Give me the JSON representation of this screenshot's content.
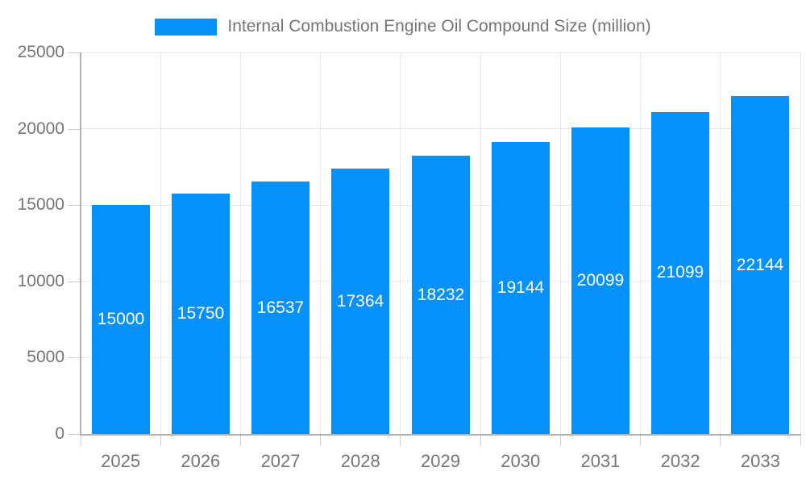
{
  "chart_data": {
    "type": "bar",
    "title": "Internal Combustion Engine Oil Compound Size (million)",
    "categories": [
      "2025",
      "2026",
      "2027",
      "2028",
      "2029",
      "2030",
      "2031",
      "2032",
      "2033"
    ],
    "series": [
      {
        "name": "Internal Combustion Engine Oil Compound Size (million)",
        "values": [
          15000,
          15750,
          16537,
          17364,
          18232,
          19144,
          20099,
          21099,
          22144
        ]
      }
    ],
    "xlabel": "",
    "ylabel": "",
    "ylim": [
      0,
      25000
    ],
    "yticks": [
      0,
      5000,
      10000,
      15000,
      20000,
      25000
    ],
    "grid": true,
    "legend_position": "top-center",
    "value_labels_position": "inside-middle-center",
    "style": {
      "bar_color": "#0591fb",
      "grid_color": "#e6e6e6",
      "axis_color": "#b3b3b3",
      "tick_color": "#cccccc",
      "tick_label_color": "#757575",
      "value_label_color": "#ffffff",
      "background": "#ffffff"
    }
  }
}
